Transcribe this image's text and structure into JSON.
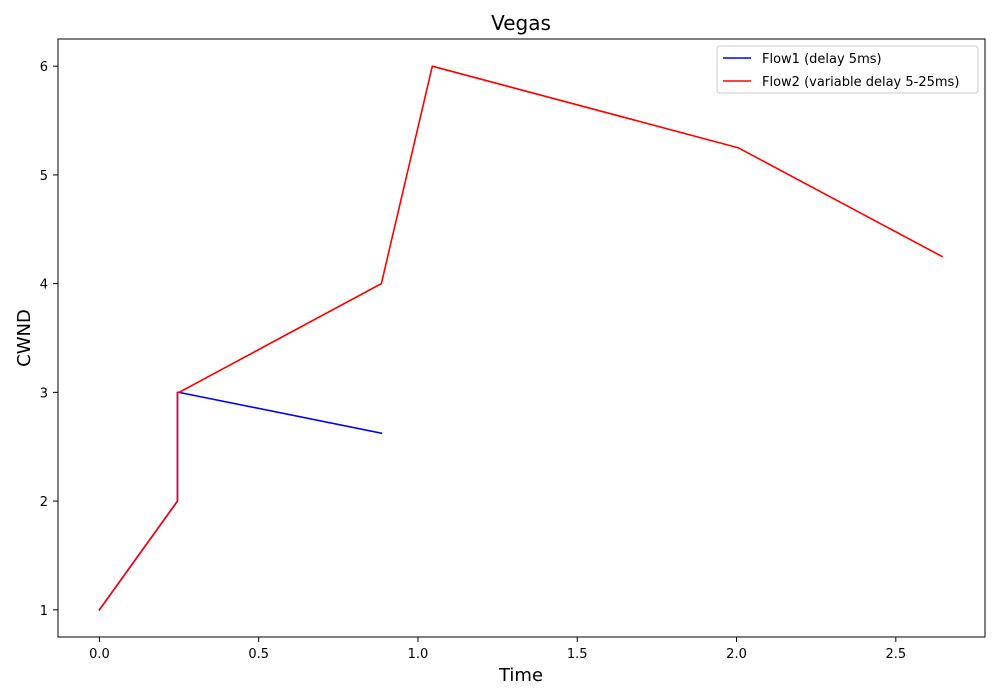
{
  "chart_data": {
    "type": "line",
    "title": "Vegas",
    "xlabel": "Time",
    "ylabel": "CWND",
    "xlim": [
      -0.13,
      2.78
    ],
    "ylim": [
      0.75,
      6.25
    ],
    "x_ticks": [
      0.0,
      0.5,
      1.0,
      1.5,
      2.0,
      2.5
    ],
    "x_tick_labels": [
      "0.0",
      "0.5",
      "1.0",
      "1.5",
      "2.0",
      "2.5"
    ],
    "y_ticks": [
      1,
      2,
      3,
      4,
      5,
      6
    ],
    "y_tick_labels": [
      "1",
      "2",
      "3",
      "4",
      "5",
      "6"
    ],
    "grid": false,
    "legend_position": "top-right",
    "series": [
      {
        "name": "Flow1 (delay 5ms)",
        "color": "#0000ff",
        "x": [
          0.0,
          0.245,
          0.245,
          0.25,
          0.885
        ],
        "y": [
          1,
          2,
          3,
          3,
          2.625
        ]
      },
      {
        "name": "Flow2 (variable delay 5-25ms)",
        "color": "#ff0000",
        "x": [
          0.0,
          0.245,
          0.245,
          0.25,
          0.885,
          1.045,
          2.005,
          2.645
        ],
        "y": [
          1,
          2,
          3,
          3,
          4,
          6,
          5.25,
          4.25
        ]
      }
    ]
  }
}
